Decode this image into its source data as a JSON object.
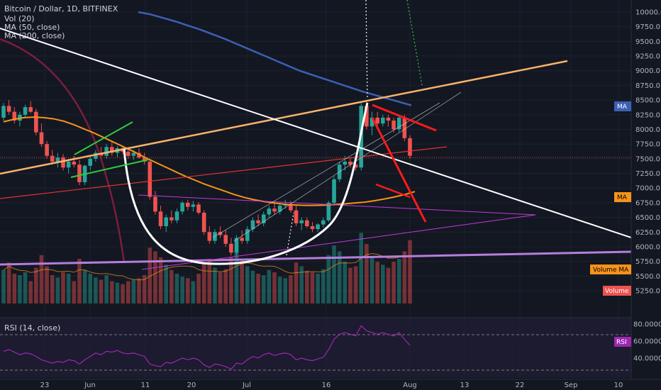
{
  "header": {
    "title": "Bitcoin / Dollar, 1D, BITFINEX",
    "indicators": [
      "Vol (20)",
      "MA (50, close)",
      "MA (200, close)"
    ]
  },
  "rsi_panel": {
    "title": "RSI (14, close)"
  },
  "badges": {
    "ma_blue": "MA",
    "ma_orange": "MA",
    "volume_ma": "Volume MA",
    "volume": "Volume",
    "rsi": "RSI"
  },
  "colors": {
    "background": "#131722",
    "up": "#26a69a",
    "down": "#ef5350",
    "ma50": "#f7931a",
    "ma200": "#3d5fb4",
    "rsi": "#9c27b0",
    "trend_white": "#ffffff",
    "trend_orange": "#f6b26b"
  },
  "chart_data": {
    "type": "candlestick",
    "price_axis": {
      "ticks": [
        "10000.0",
        "9750.0",
        "9500.0",
        "9250.0",
        "9000.0",
        "8750.0",
        "8500.0",
        "8250.0",
        "8000.0",
        "7750.0",
        "7500.0",
        "7250.0",
        "7000.0",
        "6750.0",
        "6500.0",
        "6250.0",
        "6000.0",
        "5750.0",
        "5500.0",
        "5250.0"
      ],
      "range": [
        5100,
        10200
      ]
    },
    "rsi_axis": {
      "ticks": [
        "80.0000",
        "60.0000",
        "40.0000"
      ],
      "range": [
        25,
        80
      ]
    },
    "x_axis_ticks": [
      "23",
      "Jun",
      "11",
      "20",
      "Jul",
      "16",
      "Aug",
      "13",
      "22",
      "Sep",
      "10"
    ],
    "candles": [
      [
        8200,
        8450,
        8150,
        8400
      ],
      [
        8400,
        8500,
        8250,
        8300
      ],
      [
        8300,
        8380,
        8100,
        8150
      ],
      [
        8150,
        8300,
        8050,
        8250
      ],
      [
        8250,
        8420,
        8200,
        8380
      ],
      [
        8380,
        8480,
        8280,
        8300
      ],
      [
        8300,
        8350,
        7900,
        7950
      ],
      [
        7950,
        8100,
        7700,
        7750
      ],
      [
        7750,
        7800,
        7500,
        7550
      ],
      [
        7550,
        7650,
        7400,
        7450
      ],
      [
        7450,
        7600,
        7350,
        7520
      ],
      [
        7520,
        7580,
        7300,
        7350
      ],
      [
        7350,
        7500,
        7250,
        7450
      ],
      [
        7450,
        7550,
        7350,
        7400
      ],
      [
        7400,
        7480,
        7050,
        7100
      ],
      [
        7100,
        7400,
        7050,
        7380
      ],
      [
        7380,
        7550,
        7300,
        7500
      ],
      [
        7500,
        7650,
        7450,
        7600
      ],
      [
        7600,
        7700,
        7500,
        7550
      ],
      [
        7550,
        7750,
        7500,
        7700
      ],
      [
        7700,
        7780,
        7550,
        7600
      ],
      [
        7600,
        7720,
        7520,
        7680
      ],
      [
        7680,
        7720,
        7580,
        7620
      ],
      [
        7620,
        7700,
        7500,
        7550
      ],
      [
        7550,
        7650,
        7480,
        7600
      ],
      [
        7600,
        7680,
        7500,
        7520
      ],
      [
        7520,
        7600,
        7400,
        7450
      ],
      [
        7450,
        7500,
        6800,
        6850
      ],
      [
        6850,
        6950,
        6550,
        6600
      ],
      [
        6600,
        6700,
        6300,
        6350
      ],
      [
        6350,
        6550,
        6250,
        6500
      ],
      [
        6500,
        6620,
        6400,
        6450
      ],
      [
        6450,
        6650,
        6400,
        6600
      ],
      [
        6600,
        6780,
        6550,
        6750
      ],
      [
        6750,
        6800,
        6620,
        6680
      ],
      [
        6680,
        6780,
        6600,
        6720
      ],
      [
        6720,
        6760,
        6550,
        6580
      ],
      [
        6580,
        6620,
        6200,
        6250
      ],
      [
        6250,
        6350,
        6050,
        6100
      ],
      [
        6100,
        6300,
        6050,
        6250
      ],
      [
        6250,
        6350,
        6150,
        6200
      ],
      [
        6200,
        6280,
        6000,
        6050
      ],
      [
        6050,
        6150,
        5850,
        5900
      ],
      [
        5900,
        6200,
        5850,
        6150
      ],
      [
        6150,
        6280,
        6050,
        6100
      ],
      [
        6100,
        6350,
        6050,
        6300
      ],
      [
        6300,
        6500,
        6250,
        6450
      ],
      [
        6450,
        6550,
        6350,
        6400
      ],
      [
        6400,
        6600,
        6350,
        6550
      ],
      [
        6550,
        6700,
        6500,
        6650
      ],
      [
        6650,
        6760,
        6550,
        6600
      ],
      [
        6600,
        6750,
        6550,
        6700
      ],
      [
        6700,
        6800,
        6650,
        6720
      ],
      [
        6720,
        6780,
        6580,
        6620
      ],
      [
        6620,
        6700,
        6350,
        6400
      ],
      [
        6400,
        6500,
        6280,
        6450
      ],
      [
        6450,
        6500,
        6320,
        6350
      ],
      [
        6350,
        6420,
        6250,
        6300
      ],
      [
        6300,
        6400,
        6250,
        6380
      ],
      [
        6380,
        6500,
        6330,
        6450
      ],
      [
        6450,
        6780,
        6420,
        6750
      ],
      [
        6750,
        7200,
        6700,
        7150
      ],
      [
        7150,
        7450,
        7100,
        7400
      ],
      [
        7400,
        7550,
        7300,
        7450
      ],
      [
        7450,
        7500,
        7350,
        7400
      ],
      [
        7400,
        7480,
        7300,
        7350
      ],
      [
        7350,
        8450,
        7300,
        8400
      ],
      [
        8400,
        8500,
        8000,
        8050
      ],
      [
        8050,
        8300,
        7900,
        8200
      ],
      [
        8200,
        8300,
        8050,
        8100
      ],
      [
        8100,
        8250,
        8050,
        8200
      ],
      [
        8200,
        8250,
        8050,
        8150
      ],
      [
        8150,
        8200,
        7950,
        8000
      ],
      [
        8000,
        8250,
        7950,
        8200
      ],
      [
        8200,
        8250,
        7800,
        7850
      ],
      [
        7850,
        7900,
        7500,
        7550
      ]
    ],
    "volume": [
      45,
      55,
      40,
      38,
      42,
      30,
      48,
      65,
      50,
      38,
      35,
      42,
      40,
      30,
      60,
      45,
      40,
      35,
      32,
      38,
      30,
      28,
      26,
      30,
      32,
      34,
      38,
      75,
      70,
      62,
      52,
      45,
      40,
      36,
      34,
      30,
      40,
      55,
      60,
      48,
      42,
      46,
      62,
      70,
      58,
      50,
      44,
      40,
      38,
      45,
      42,
      36,
      34,
      38,
      55,
      50,
      44,
      42,
      40,
      46,
      65,
      78,
      70,
      56,
      48,
      50,
      95,
      80,
      62,
      56,
      52,
      48,
      56,
      60,
      70,
      85
    ],
    "ma50": [
      8130,
      8170,
      8200,
      8210,
      8200,
      8180,
      8140,
      8080,
      8010,
      7940,
      7860,
      7780,
      7700,
      7620,
      7530,
      7450,
      7370,
      7290,
      7210,
      7140,
      7070,
      7010,
      6950,
      6890,
      6840,
      6800,
      6770,
      6745,
      6725,
      6712,
      6705,
      6705,
      6710,
      6720,
      6730,
      6745,
      6760,
      6785,
      6815,
      6850,
      6890,
      6940
    ],
    "ma200": [
      10000,
      9960,
      9900,
      9840,
      9770,
      9700,
      9620,
      9540,
      9450,
      9360,
      9270,
      9180,
      9090,
      9000,
      8930,
      8860,
      8790,
      8720,
      8650,
      8590,
      8530,
      8470,
      8410
    ],
    "rsi": [
      48,
      50,
      47,
      44,
      46,
      45,
      42,
      38,
      36,
      34,
      36,
      35,
      38,
      37,
      33,
      38,
      42,
      46,
      44,
      48,
      47,
      49,
      46,
      45,
      46,
      44,
      42,
      33,
      31,
      30,
      35,
      34,
      37,
      40,
      38,
      40,
      38,
      32,
      29,
      33,
      32,
      30,
      27,
      34,
      33,
      38,
      42,
      40,
      44,
      46,
      43,
      45,
      46,
      44,
      38,
      40,
      38,
      37,
      39,
      41,
      50,
      62,
      68,
      70,
      68,
      66,
      78,
      72,
      70,
      68,
      70,
      68,
      66,
      70,
      62,
      55
    ]
  }
}
